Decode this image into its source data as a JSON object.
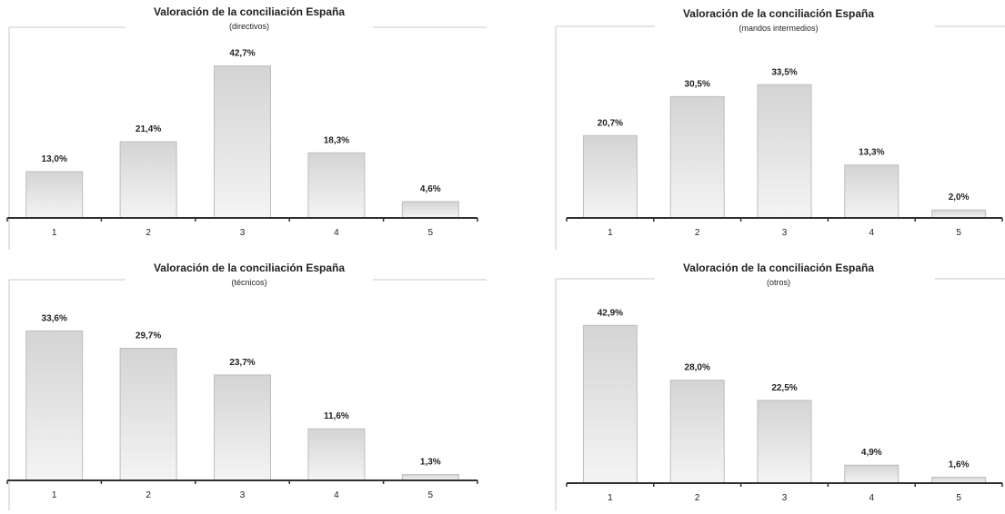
{
  "colors": {
    "bar_top": "#d4d4d4",
    "bar_bottom": "#f4f4f4",
    "bar_stroke": "#bdbdbd",
    "axis": "#303030",
    "frame": "#c8c8c8",
    "text": "#1f1f1f"
  },
  "chart_data": [
    {
      "type": "bar",
      "title": "Valoración de la conciliación España",
      "subtitle": "(directivos)",
      "categories": [
        "1",
        "2",
        "3",
        "4",
        "5"
      ],
      "values": [
        13.0,
        21.4,
        42.7,
        18.3,
        4.6
      ],
      "value_labels": [
        "13,0%",
        "21,4%",
        "42,7%",
        "18,3%",
        "4,6%"
      ],
      "grid": false,
      "legend": "none"
    },
    {
      "type": "bar",
      "title": "Valoración de la conciliación España",
      "subtitle": "(mandos intermedios)",
      "categories": [
        "1",
        "2",
        "3",
        "4",
        "5"
      ],
      "values": [
        20.7,
        30.5,
        33.5,
        13.3,
        2.0
      ],
      "value_labels": [
        "20,7%",
        "30,5%",
        "33,5%",
        "13,3%",
        "2,0%"
      ],
      "grid": false,
      "legend": "none"
    },
    {
      "type": "bar",
      "title": "Valoración de la conciliación España",
      "subtitle": "(técnicos)",
      "categories": [
        "1",
        "2",
        "3",
        "4",
        "5"
      ],
      "values": [
        33.6,
        29.7,
        23.7,
        11.6,
        1.3
      ],
      "value_labels": [
        "33,6%",
        "29,7%",
        "23,7%",
        "11,6%",
        "1,3%"
      ],
      "grid": false,
      "legend": "none"
    },
    {
      "type": "bar",
      "title": "Valoración de la conciliación España",
      "subtitle": "(otros)",
      "categories": [
        "1",
        "2",
        "3",
        "4",
        "5"
      ],
      "values": [
        42.9,
        28.0,
        22.5,
        4.9,
        1.6
      ],
      "value_labels": [
        "42,9%",
        "28,0%",
        "22,5%",
        "4,9%",
        "1,6%"
      ],
      "grid": false,
      "legend": "none"
    }
  ]
}
